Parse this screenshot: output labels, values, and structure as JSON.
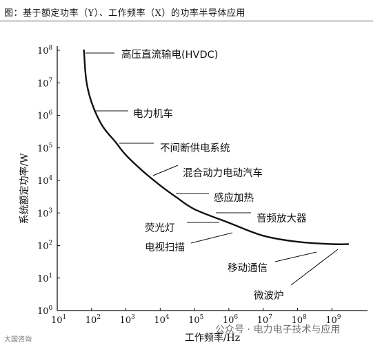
{
  "caption": "图：基于额定功率（Y）、工作频率（X）的功率半导体应用",
  "watermark": "公众号 · 电力电子技术与应用",
  "watermark_small": "大国咨询",
  "chart_data": {
    "type": "line",
    "xlabel": "工作频率/Hz",
    "ylabel": "系统额定功率/W",
    "x_scale": "log",
    "y_scale": "log",
    "xlim": [
      10,
      10000000000
    ],
    "ylim": [
      1,
      100000000
    ],
    "x_ticks": [
      {
        "exp": 1,
        "label": "10"
      },
      {
        "exp": 2,
        "label": "10"
      },
      {
        "exp": 3,
        "label": "10"
      },
      {
        "exp": 4,
        "label": "10"
      },
      {
        "exp": 5,
        "label": "10"
      },
      {
        "exp": 6,
        "label": "10"
      },
      {
        "exp": 7,
        "label": "10"
      },
      {
        "exp": 8,
        "label": "10"
      },
      {
        "exp": 9,
        "label": "10"
      }
    ],
    "y_ticks": [
      {
        "exp": 0,
        "label": "10"
      },
      {
        "exp": 1,
        "label": "10"
      },
      {
        "exp": 2,
        "label": "10"
      },
      {
        "exp": 3,
        "label": "10"
      },
      {
        "exp": 4,
        "label": "10"
      },
      {
        "exp": 5,
        "label": "10"
      },
      {
        "exp": 6,
        "label": "10"
      },
      {
        "exp": 7,
        "label": "10"
      },
      {
        "exp": 8,
        "label": "10"
      }
    ],
    "curve": [
      {
        "x": 60,
        "y": 100000000
      },
      {
        "x": 70,
        "y": 12000000
      },
      {
        "x": 100,
        "y": 2500000
      },
      {
        "x": 200,
        "y": 500000
      },
      {
        "x": 500,
        "y": 150000
      },
      {
        "x": 1000,
        "y": 60000
      },
      {
        "x": 3000,
        "y": 20000
      },
      {
        "x": 10000,
        "y": 7000
      },
      {
        "x": 30000,
        "y": 3000
      },
      {
        "x": 100000,
        "y": 1300
      },
      {
        "x": 1000000,
        "y": 500
      },
      {
        "x": 10000000,
        "y": 200
      },
      {
        "x": 100000000,
        "y": 130
      },
      {
        "x": 1000000000,
        "y": 110
      },
      {
        "x": 3000000000,
        "y": 110
      }
    ],
    "annotations": [
      {
        "text": "高压直流输电(HVDC)",
        "x": 90,
        "y": 55000000
      },
      {
        "text": "电力机车",
        "x": 180,
        "y": 1600000
      },
      {
        "text": "不间断供电系统",
        "x": 700,
        "y": 150000
      },
      {
        "text": "混合动力电动汽车",
        "x": 2500,
        "y": 10000
      },
      {
        "text": "感应加热",
        "x": 12000,
        "y": 3200
      },
      {
        "text": "音频放大器",
        "x": 400000,
        "y": 1200
      },
      {
        "text": "荧光灯",
        "x": 60000,
        "y": 520
      },
      {
        "text": "电视扫描",
        "x": 100000,
        "y": 320
      },
      {
        "text": "移动通信",
        "x": 100000000,
        "y": 110
      },
      {
        "text": "微波炉",
        "x": 150000000,
        "y": 110
      }
    ]
  }
}
